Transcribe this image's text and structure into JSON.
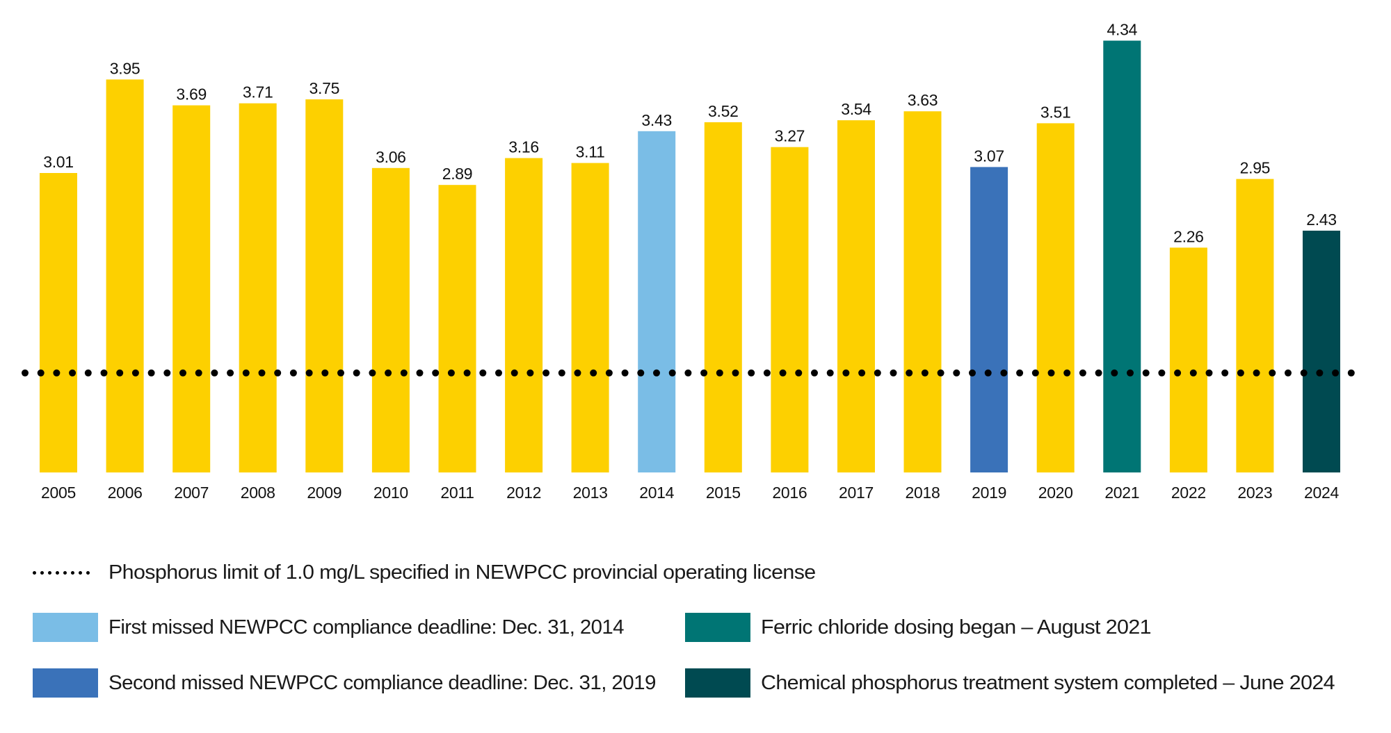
{
  "chart_data": {
    "type": "bar",
    "title": "",
    "xlabel": "",
    "ylabel": "",
    "ylim": [
      0,
      4.75
    ],
    "grid": false,
    "categories": [
      "2005",
      "2006",
      "2007",
      "2008",
      "2009",
      "2010",
      "2011",
      "2012",
      "2013",
      "2014",
      "2015",
      "2016",
      "2017",
      "2018",
      "2019",
      "2020",
      "2021",
      "2022",
      "2023",
      "2024"
    ],
    "values": [
      3.01,
      3.95,
      3.69,
      3.71,
      3.75,
      3.06,
      2.89,
      3.16,
      3.11,
      3.43,
      3.52,
      3.27,
      3.54,
      3.63,
      3.07,
      3.51,
      4.34,
      2.26,
      2.95,
      2.43
    ],
    "value_labels": [
      "3.01",
      "3.95",
      "3.69",
      "3.71",
      "3.75",
      "3.06",
      "2.89",
      "3.16",
      "3.11",
      "3.43",
      "3.52",
      "3.27",
      "3.54",
      "3.63",
      "3.07",
      "3.51",
      "4.34",
      "2.26",
      "2.95",
      "2.43"
    ],
    "bar_categories": [
      "default",
      "default",
      "default",
      "default",
      "default",
      "default",
      "default",
      "default",
      "default",
      "first_missed",
      "default",
      "default",
      "default",
      "default",
      "second_missed",
      "default",
      "ferric",
      "default",
      "default",
      "chemical"
    ],
    "reference_line": {
      "value": 1.0,
      "style": "dotted",
      "label": "Phosphorus limit of 1.0 mg/L specified in NEWPCC provincial operating license"
    },
    "colors": {
      "default": "#FDD000",
      "first_missed": "#7ABDE6",
      "second_missed": "#3A72B9",
      "ferric": "#007574",
      "chemical": "#004A51",
      "reference_line": "#000000"
    },
    "legend_position": "bottom",
    "legend": [
      {
        "key": "reference",
        "type": "dots",
        "label": "Phosphorus limit of 1.0 mg/L specified in NEWPCC provincial operating license"
      },
      {
        "key": "first_missed",
        "type": "swatch",
        "color": "#7ABDE6",
        "label": "First missed NEWPCC compliance deadline: Dec. 31, 2014"
      },
      {
        "key": "second_missed",
        "type": "swatch",
        "color": "#3A72B9",
        "label": "Second missed NEWPCC compliance deadline: Dec. 31, 2019"
      },
      {
        "key": "ferric",
        "type": "swatch",
        "color": "#007574",
        "label": "Ferric chloride dosing began – August 2021"
      },
      {
        "key": "chemical",
        "type": "swatch",
        "color": "#004A51",
        "label": "Chemical phosphorus treatment system completed – June 2024"
      }
    ]
  }
}
